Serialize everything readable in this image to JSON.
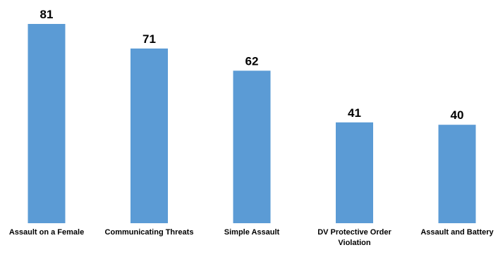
{
  "chart_data": {
    "type": "bar",
    "categories": [
      [
        "Assault on a Female"
      ],
      [
        "Communicating Threats"
      ],
      [
        "Simple Assault"
      ],
      [
        "DV Protective Order",
        "Violation"
      ],
      [
        "Assault and Battery"
      ]
    ],
    "values": [
      81,
      71,
      62,
      41,
      40
    ],
    "title": "",
    "xlabel": "",
    "ylabel": "",
    "ylim": [
      0,
      81
    ],
    "grid": false,
    "legend": "none",
    "bar_color": "#5B9BD5",
    "show_data_labels": true,
    "show_y_axis": false
  }
}
